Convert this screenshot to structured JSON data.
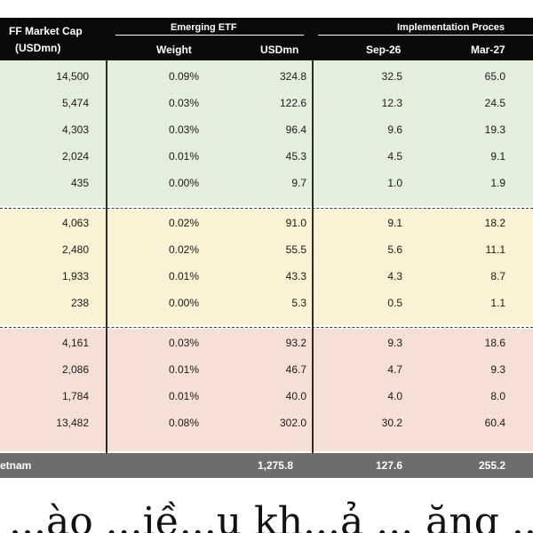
{
  "header": {
    "ff_line1": "FF Market Cap",
    "ff_line2": "(USDmn)",
    "group_etf": "Emerging ETF",
    "group_impl": "Implementation Proces",
    "col_weight": "Weight",
    "col_usdmn": "USDmn",
    "col_sep": "Sep-26",
    "col_mar": "Mar-27"
  },
  "colors": {
    "green": "#e3eedc",
    "yellow": "#fbf1d5",
    "red": "#f6e0d6",
    "header": "#0a0a0a",
    "total": "#6d6d6d"
  },
  "groups": [
    {
      "name": "green",
      "rows": [
        {
          "ff": "14,500",
          "weight": "0.09%",
          "usdmn": "324.8",
          "sep": "32.5",
          "mar": "65.0"
        },
        {
          "ff": "5,474",
          "weight": "0.03%",
          "usdmn": "122.6",
          "sep": "12.3",
          "mar": "24.5"
        },
        {
          "ff": "4,303",
          "weight": "0.03%",
          "usdmn": "96.4",
          "sep": "9.6",
          "mar": "19.3"
        },
        {
          "ff": "2,024",
          "weight": "0.01%",
          "usdmn": "45.3",
          "sep": "4.5",
          "mar": "9.1"
        },
        {
          "ff": "435",
          "weight": "0.00%",
          "usdmn": "9.7",
          "sep": "1.0",
          "mar": "1.9"
        }
      ]
    },
    {
      "name": "yellow",
      "rows": [
        {
          "ff": "4,063",
          "weight": "0.02%",
          "usdmn": "91.0",
          "sep": "9.1",
          "mar": "18.2"
        },
        {
          "ff": "2,480",
          "weight": "0.02%",
          "usdmn": "55.5",
          "sep": "5.6",
          "mar": "11.1"
        },
        {
          "ff": "1,933",
          "weight": "0.01%",
          "usdmn": "43.3",
          "sep": "4.3",
          "mar": "8.7"
        },
        {
          "ff": "238",
          "weight": "0.00%",
          "usdmn": "5.3",
          "sep": "0.5",
          "mar": "1.1"
        }
      ]
    },
    {
      "name": "red",
      "rows": [
        {
          "ff": "4,161",
          "weight": "0.03%",
          "usdmn": "93.2",
          "sep": "9.3",
          "mar": "18.6"
        },
        {
          "ff": "2,086",
          "weight": "0.01%",
          "usdmn": "46.7",
          "sep": "4.7",
          "mar": "9.3"
        },
        {
          "ff": "1,784",
          "weight": "0.01%",
          "usdmn": "40.0",
          "sep": "4.0",
          "mar": "8.0"
        },
        {
          "ff": "13,482",
          "weight": "0.08%",
          "usdmn": "302.0",
          "sep": "30.2",
          "mar": "60.4"
        }
      ]
    }
  ],
  "total": {
    "label": "etnam",
    "usdmn": "1,275.8",
    "sep": "127.6",
    "mar": "255.2"
  },
  "caption": "...ào ...iề...u kh...ả ... ăng ...kh...ả ...ớ...i ... khi"
}
